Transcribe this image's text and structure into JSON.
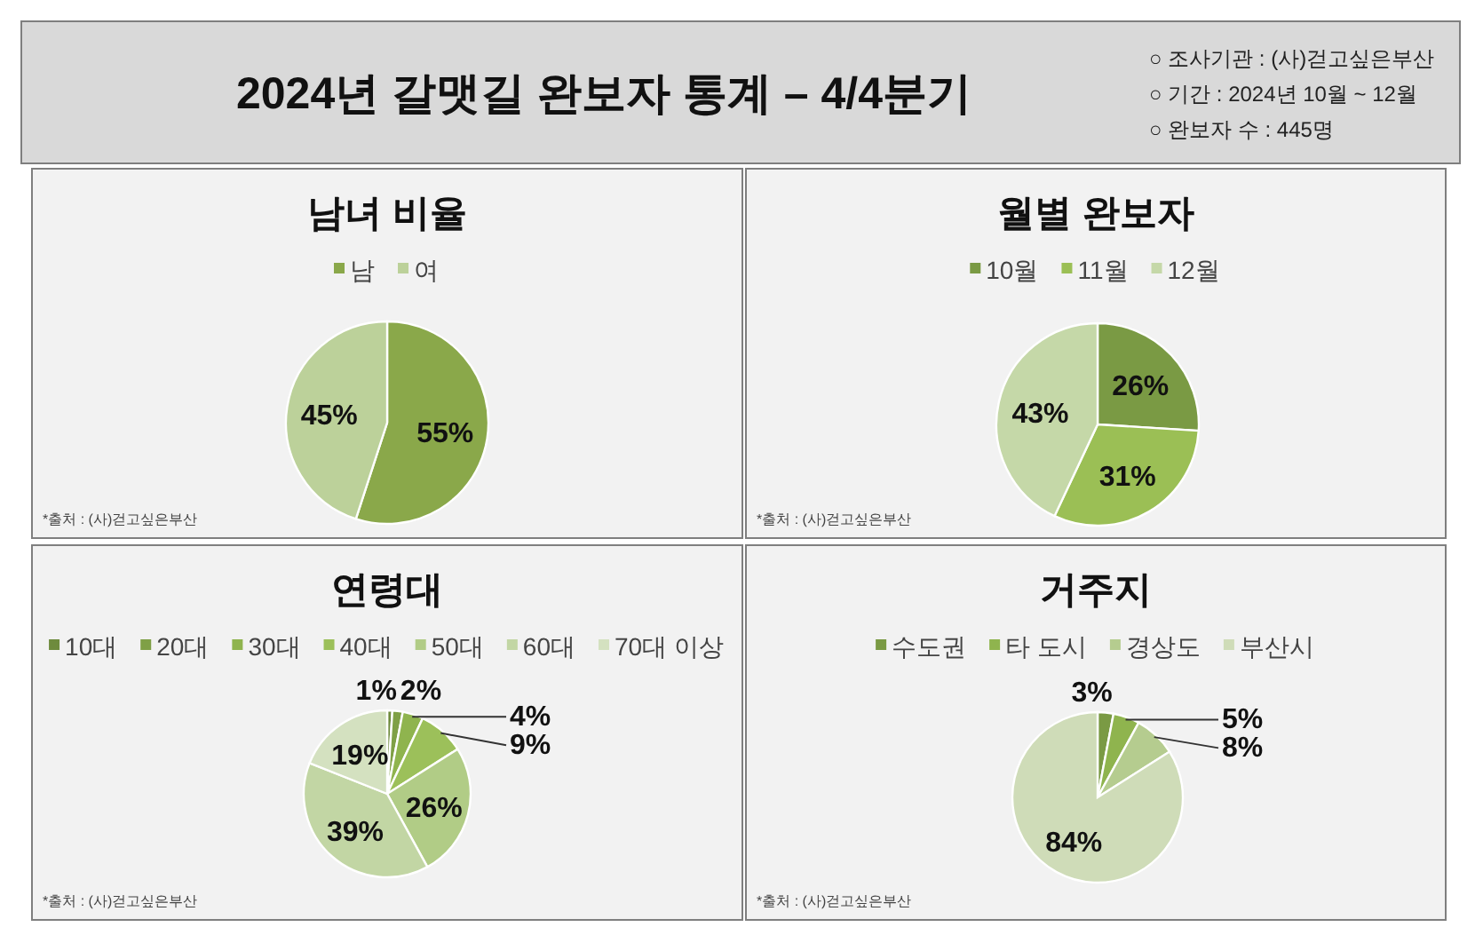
{
  "chart_data": [
    {
      "type": "other",
      "title": "2024년 갈맷길 완보자 통계 – 4/4분기",
      "annotations": [
        "○ 조사기관 : (사)걷고싶은부산",
        "○ 기간 : 2024년 10월 ~ 12월",
        "○ 완보자 수 : 445명"
      ]
    },
    {
      "type": "pie",
      "title": "남녀 비율",
      "categories": [
        "남",
        "여"
      ],
      "values": [
        55,
        45
      ],
      "value_labels": [
        "55%",
        "45%"
      ],
      "colors": [
        "#8aa84a",
        "#bcd19a"
      ],
      "legend": "top",
      "annotations": [
        "*출처 : (사)걷고싶은부산"
      ]
    },
    {
      "type": "pie",
      "title": "월별 완보자",
      "categories": [
        "10월",
        "11월",
        "12월"
      ],
      "values": [
        26,
        31,
        43
      ],
      "value_labels": [
        "26%",
        "31%",
        "43%"
      ],
      "colors": [
        "#7a9a44",
        "#9bbf55",
        "#c5d8a8"
      ],
      "legend": "top",
      "annotations": [
        "*출처 : (사)걷고싶은부산"
      ]
    },
    {
      "type": "pie",
      "title": "연령대",
      "categories": [
        "10대",
        "20대",
        "30대",
        "40대",
        "50대",
        "60대",
        "70대 이상"
      ],
      "values": [
        1,
        2,
        4,
        9,
        26,
        39,
        19
      ],
      "value_labels": [
        "1%",
        "2%",
        "4%",
        "9%",
        "26%",
        "39%",
        "19%"
      ],
      "colors": [
        "#6e8b3d",
        "#7fa046",
        "#8fb44e",
        "#9cc05a",
        "#b1cc86",
        "#c2d6a4",
        "#d4e1c0"
      ],
      "legend": "top",
      "annotations": [
        "*출처 : (사)걷고싶은부산"
      ]
    },
    {
      "type": "pie",
      "title": "거주지",
      "categories": [
        "수도권",
        "타 도시",
        "경상도",
        "부산시"
      ],
      "values": [
        3,
        5,
        8,
        84
      ],
      "value_labels": [
        "3%",
        "5%",
        "8%",
        "84%"
      ],
      "colors": [
        "#7a9a44",
        "#8fb44e",
        "#b5cc8f",
        "#cfdcb8"
      ],
      "legend": "top",
      "annotations": [
        "*출처 : (사)걷고싶은부산"
      ]
    }
  ]
}
